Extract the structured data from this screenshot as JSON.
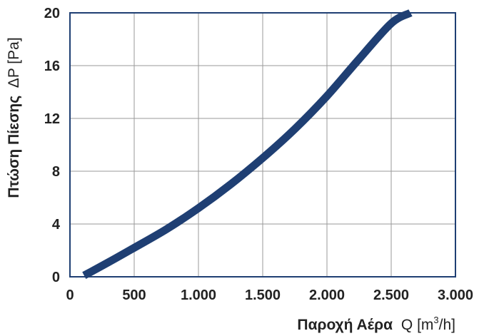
{
  "chart_data": {
    "type": "line",
    "title": "",
    "xlabel_main": "Παροχή Αέρα",
    "xlabel_unit_pre": "Q [m",
    "xlabel_unit_sup": "3",
    "xlabel_unit_post": "/h]",
    "ylabel_main": "Πτώση Πίεσης",
    "ylabel_unit": "ΔP [Pa]",
    "xlim": [
      0,
      3000
    ],
    "ylim": [
      0,
      20
    ],
    "x_ticks": [
      0,
      500,
      1000,
      1500,
      2000,
      2500,
      3000
    ],
    "x_tick_labels": [
      "0",
      "500",
      "1.000",
      "1.500",
      "2.000",
      "2.500",
      "3.000"
    ],
    "y_ticks": [
      0,
      4,
      8,
      12,
      16,
      20
    ],
    "y_tick_labels": [
      "0",
      "4",
      "8",
      "12",
      "16",
      "20"
    ],
    "grid": true,
    "series": [
      {
        "color": "#1f3f73",
        "x": [
          110,
          300,
          500,
          750,
          1000,
          1250,
          1500,
          1750,
          2000,
          2250,
          2500,
          2650
        ],
        "y": [
          0.1,
          1.1,
          2.2,
          3.6,
          5.2,
          7.0,
          9.0,
          11.2,
          13.7,
          16.5,
          19.2,
          20.0
        ]
      }
    ]
  }
}
